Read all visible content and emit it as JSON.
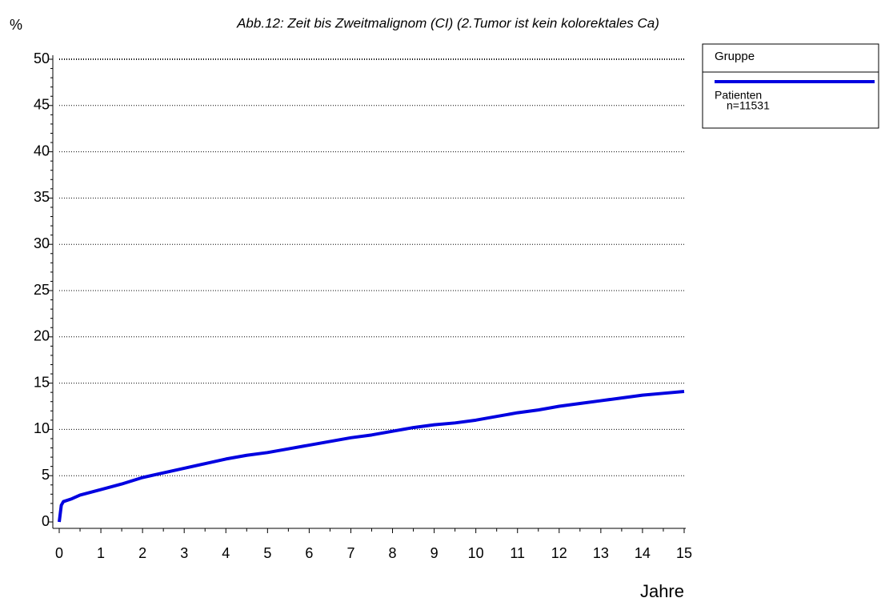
{
  "chart_data": {
    "type": "line",
    "title": "Abb.12: Zeit bis Zweitmalignom (CI) (2.Tumor ist kein kolorektales Ca)",
    "y_label": "%",
    "x_label": "Jahre",
    "legend_title": "Gruppe",
    "legend": "right",
    "x": [
      0,
      0.05,
      0.1,
      0.3,
      0.5,
      1,
      1.5,
      2,
      2.5,
      3,
      3.5,
      4,
      4.5,
      5,
      5.5,
      6,
      6.5,
      7,
      7.5,
      8,
      8.5,
      9,
      9.5,
      10,
      10.5,
      11,
      11.5,
      12,
      12.5,
      13,
      13.5,
      14,
      14.5,
      15
    ],
    "series": [
      {
        "name": "Patienten",
        "n_label": "n=11531",
        "color": "#0000e0",
        "values": [
          0,
          1.8,
          2.2,
          2.5,
          2.9,
          3.5,
          4.1,
          4.8,
          5.3,
          5.8,
          6.3,
          6.8,
          7.2,
          7.5,
          7.9,
          8.3,
          8.7,
          9.1,
          9.4,
          9.8,
          10.2,
          10.5,
          10.7,
          11.0,
          11.4,
          11.8,
          12.1,
          12.5,
          12.8,
          13.1,
          13.4,
          13.7,
          13.9,
          14.1
        ]
      }
    ],
    "xlim": [
      0,
      15
    ],
    "xticks": [
      0,
      1,
      2,
      3,
      4,
      5,
      6,
      7,
      8,
      9,
      10,
      11,
      12,
      13,
      14,
      15
    ],
    "ylim": [
      0,
      50
    ],
    "yticks": [
      0,
      5,
      10,
      15,
      20,
      25,
      30,
      35,
      40,
      45,
      50
    ],
    "grid": true
  }
}
